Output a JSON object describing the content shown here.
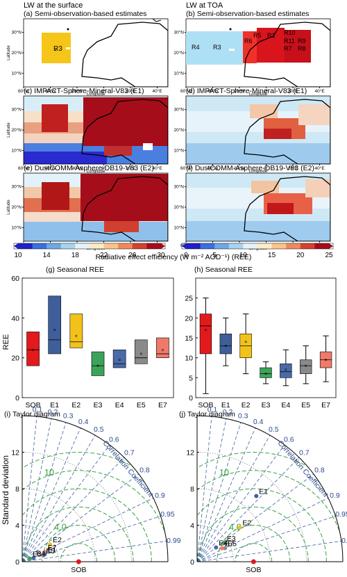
{
  "headers": {
    "left": "LW at the surface",
    "right": "LW at TOA"
  },
  "maps": {
    "panels": [
      {
        "title": "(a) Semi-observation-based estimates",
        "regions": [
          "R3"
        ]
      },
      {
        "title": "(b) Semi-observation-based estimates",
        "regions": [
          "R4",
          "R3",
          "R5",
          "R1",
          "R10",
          "R6",
          "R11",
          "R9",
          "R7",
          "R8"
        ]
      },
      {
        "title": "(c) IMPACT-Sphere-Mineral-V83 (E1)"
      },
      {
        "title": "(d) IMPACT-Sphere-Mineral-V83 (E1)"
      },
      {
        "title": "(e) DustCOMM-Asphere-DB19-V83 (E2)"
      },
      {
        "title": "(f) DustCOMM-Asphere-DB19-V83 (E2)"
      }
    ],
    "lon_ticks": [
      "60°W",
      "40°W",
      "20°W",
      "0°",
      "20°E",
      "40°E"
    ],
    "lat_ticks": [
      "30°N",
      "20°N",
      "10°N"
    ],
    "xlabel": "Longitude",
    "ylabel": "Latitude"
  },
  "colorbars": {
    "left_ticks": [
      "10",
      "14",
      "18",
      "22",
      "26",
      "30"
    ],
    "right_ticks": [
      "0",
      "5",
      "10",
      "15",
      "20",
      "25"
    ],
    "label": "Radiative effect efficiency (W m⁻² AOD⁻¹) (REE)",
    "colors": [
      "#2020c8",
      "#3a6fe0",
      "#6fa8e8",
      "#a9d3ee",
      "#e4f3fa",
      "#fdebc9",
      "#fbc48a",
      "#f08a5a",
      "#d8402e",
      "#a50d1a"
    ]
  },
  "chart_data": [
    {
      "type": "box",
      "title": "(g) Seasonal REE",
      "ylabel": "REE",
      "ylim": [
        0,
        60
      ],
      "yticks": [
        0,
        20,
        40,
        60
      ],
      "categories": [
        "SOB",
        "E1",
        "E2",
        "E3",
        "E4",
        "E5",
        "E7"
      ],
      "colors": [
        "#e31a1c",
        "#3f5f9a",
        "#f2c21b",
        "#3ca35a",
        "#4a6aa8",
        "#8a8a8a",
        "#f07a6a"
      ],
      "boxes": [
        {
          "low": 16,
          "q1": 16,
          "median": 24,
          "q3": 33,
          "high": 33,
          "mean": 24
        },
        {
          "low": 22,
          "q1": 22,
          "median": 29,
          "q3": 51,
          "high": 51,
          "mean": 34
        },
        {
          "low": 25,
          "q1": 25,
          "median": 28,
          "q3": 42,
          "high": 42,
          "mean": 31
        },
        {
          "low": 11,
          "q1": 11,
          "median": 16,
          "q3": 23,
          "high": 23,
          "mean": 16
        },
        {
          "low": 15,
          "q1": 15,
          "median": 17,
          "q3": 24,
          "high": 24,
          "mean": 19
        },
        {
          "low": 17,
          "q1": 17,
          "median": 20,
          "q3": 29,
          "high": 29,
          "mean": 22
        },
        {
          "low": 20,
          "q1": 20,
          "median": 22,
          "q3": 30,
          "high": 30,
          "mean": 24
        }
      ]
    },
    {
      "type": "box",
      "title": "(h) Seasonal REE",
      "ylabel": "",
      "ylim": [
        0,
        30
      ],
      "yticks": [
        0,
        5,
        10,
        15,
        20,
        25
      ],
      "categories": [
        "SOB",
        "E1",
        "E2",
        "E3",
        "E4",
        "E5",
        "E7"
      ],
      "colors": [
        "#e31a1c",
        "#3f5f9a",
        "#f2c21b",
        "#3ca35a",
        "#4a6aa8",
        "#8a8a8a",
        "#f07a6a"
      ],
      "boxes": [
        {
          "low": 1,
          "q1": 11,
          "median": 18,
          "q3": 21,
          "high": 25,
          "mean": 17
        },
        {
          "low": 8,
          "q1": 11,
          "median": 13,
          "q3": 16,
          "high": 20,
          "mean": 13
        },
        {
          "low": 6,
          "q1": 10,
          "median": 13,
          "q3": 16,
          "high": 21,
          "mean": 14
        },
        {
          "low": 3.5,
          "q1": 5,
          "median": 6,
          "q3": 7.5,
          "high": 9,
          "mean": 6
        },
        {
          "low": 3,
          "q1": 5,
          "median": 6.5,
          "q3": 8.5,
          "high": 12,
          "mean": 7
        },
        {
          "low": 3.5,
          "q1": 6,
          "median": 8,
          "q3": 9.5,
          "high": 13,
          "mean": 8
        },
        {
          "low": 4,
          "q1": 7.5,
          "median": 9.5,
          "q3": 11.5,
          "high": 15.5,
          "mean": 9.5
        }
      ]
    },
    {
      "type": "taylor",
      "title": "(i) Taylor diagram",
      "ylabel": "Standard deviation",
      "xlabel": "SOB",
      "axis_max": 16,
      "ticks": [
        0,
        4,
        8,
        12
      ],
      "corr_ticks": [
        "0.1",
        "0.2",
        "0.3",
        "0.4",
        "0.5",
        "0.6",
        "0.7",
        "0.8",
        "0.9",
        "0.95",
        "0.99"
      ],
      "corr_label": "Correlation Coefficient",
      "rms_labels": [
        {
          "text": "10",
          "r": 10
        },
        {
          "text": "4.0",
          "r": 4
        }
      ],
      "ref": {
        "label": "SOB",
        "std": 6.2
      },
      "points": [
        {
          "label": "E2",
          "std": 3.6,
          "corr": 0.85,
          "color": "#f2c21b"
        },
        {
          "label": "E7",
          "std": 2.7,
          "corr": 0.92,
          "color": "#f07a6a"
        },
        {
          "label": "E5",
          "std": 2.4,
          "corr": 0.96,
          "color": "#8a8a8a"
        },
        {
          "label": "E1",
          "std": 2.6,
          "corr": 0.95,
          "color": "#3f5f9a"
        },
        {
          "label": "E4",
          "std": 1.3,
          "corr": 0.95,
          "color": "#4a6aa8"
        },
        {
          "label": "E3",
          "std": 0.9,
          "corr": 0.93,
          "color": "#3ca35a"
        }
      ]
    },
    {
      "type": "taylor",
      "title": "(j) Taylor diagram",
      "ylabel": "",
      "xlabel": "SOB",
      "axis_max": 16,
      "ticks": [
        0,
        4,
        8,
        12
      ],
      "corr_ticks": [
        "0.1",
        "0.2",
        "0.3",
        "0.4",
        "0.5",
        "0.6",
        "0.7",
        "0.8",
        "0.9",
        "0.95",
        "0.99"
      ],
      "corr_label": "Correlation Coefficient",
      "rms_labels": [
        {
          "text": "10",
          "r": 10
        },
        {
          "text": "4.0",
          "r": 4
        }
      ],
      "ref": {
        "label": "SOB",
        "std": 6.2
      },
      "points": [
        {
          "label": "E1",
          "std": 9.7,
          "corr": 0.67,
          "color": "#3f5f9a"
        },
        {
          "label": "E2",
          "std": 6.0,
          "corr": 0.78,
          "color": "#f2c21b"
        },
        {
          "label": "E3",
          "std": 3.6,
          "corr": 0.82,
          "color": "#3ca35a"
        },
        {
          "label": "E5",
          "std": 3.4,
          "corr": 0.9,
          "color": "#8a8a8a"
        },
        {
          "label": "E7",
          "std": 3.1,
          "corr": 0.88,
          "color": "#f07a6a"
        },
        {
          "label": "E4",
          "std": 2.6,
          "corr": 0.8,
          "color": "#4a6aa8"
        }
      ]
    }
  ]
}
